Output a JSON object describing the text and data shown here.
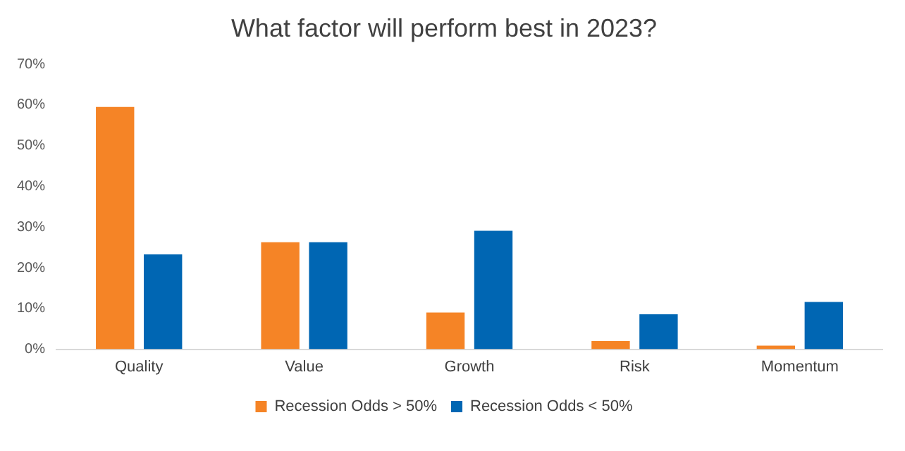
{
  "chart_data": {
    "type": "bar",
    "title": "What factor will perform best in 2023?",
    "categories": [
      "Quality",
      "Value",
      "Growth",
      "Risk",
      "Momentum"
    ],
    "series": [
      {
        "name": "Recession Odds > 50%",
        "color": "#f58426",
        "values": [
          59.5,
          26.3,
          9.0,
          2.0,
          0.9
        ]
      },
      {
        "name": "Recession Odds < 50%",
        "color": "#0066b3",
        "values": [
          23.3,
          26.3,
          29.1,
          8.6,
          11.6
        ]
      }
    ],
    "ylim": [
      0,
      70
    ],
    "yticks": [
      {
        "value": 0,
        "label": "0%"
      },
      {
        "value": 10,
        "label": "10%"
      },
      {
        "value": 20,
        "label": "20%"
      },
      {
        "value": 30,
        "label": "30%"
      },
      {
        "value": 40,
        "label": "40%"
      },
      {
        "value": 50,
        "label": "50%"
      },
      {
        "value": 60,
        "label": "60%"
      },
      {
        "value": 70,
        "label": "70%"
      }
    ],
    "grid": false,
    "legend": "bottom"
  }
}
